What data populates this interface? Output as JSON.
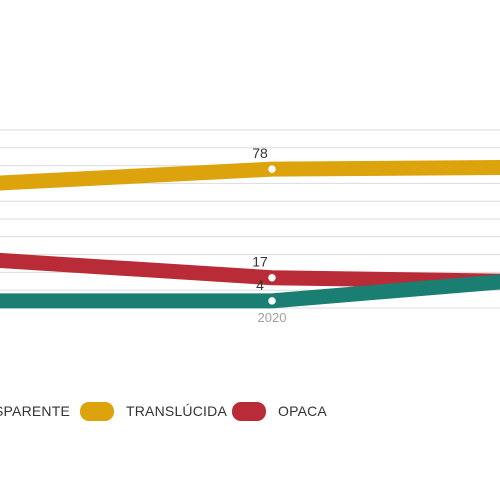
{
  "colors": {
    "transparente": "#1a7f72",
    "translucida": "#dca30c",
    "opaca": "#b92b36",
    "grid": "#dcdcdc",
    "tick_text": "#a0a0a0",
    "label_text": "#333333"
  },
  "legend": {
    "items": [
      {
        "label": "TRANSPARENTE",
        "visible_text": "SPARENTE",
        "color_key": "transparente"
      },
      {
        "label": "TRANSLÚCIDA",
        "visible_text": "TRANSLÚCIDA",
        "color_key": "translucida"
      },
      {
        "label": "OPACA",
        "visible_text": "OPACA",
        "color_key": "opaca"
      }
    ]
  },
  "chart_data": {
    "type": "line",
    "x": [
      "",
      "2020",
      ""
    ],
    "x_tick_labels": [
      "2020"
    ],
    "series": [
      {
        "name": "TRANSLÚCIDA",
        "color_key": "translucida",
        "values": [
          70,
          78,
          79
        ],
        "labels": [
          "",
          "78",
          ""
        ]
      },
      {
        "name": "OPACA",
        "color_key": "opaca",
        "values": [
          27,
          17,
          15
        ],
        "labels": [
          "",
          "17",
          ""
        ]
      },
      {
        "name": "TRANSPARENTE",
        "color_key": "transparente",
        "values": [
          4,
          4,
          15
        ],
        "labels": [
          "",
          "4",
          ""
        ]
      }
    ],
    "ylim": [
      0,
      100
    ],
    "grid": true,
    "legend_position": "bottom"
  }
}
